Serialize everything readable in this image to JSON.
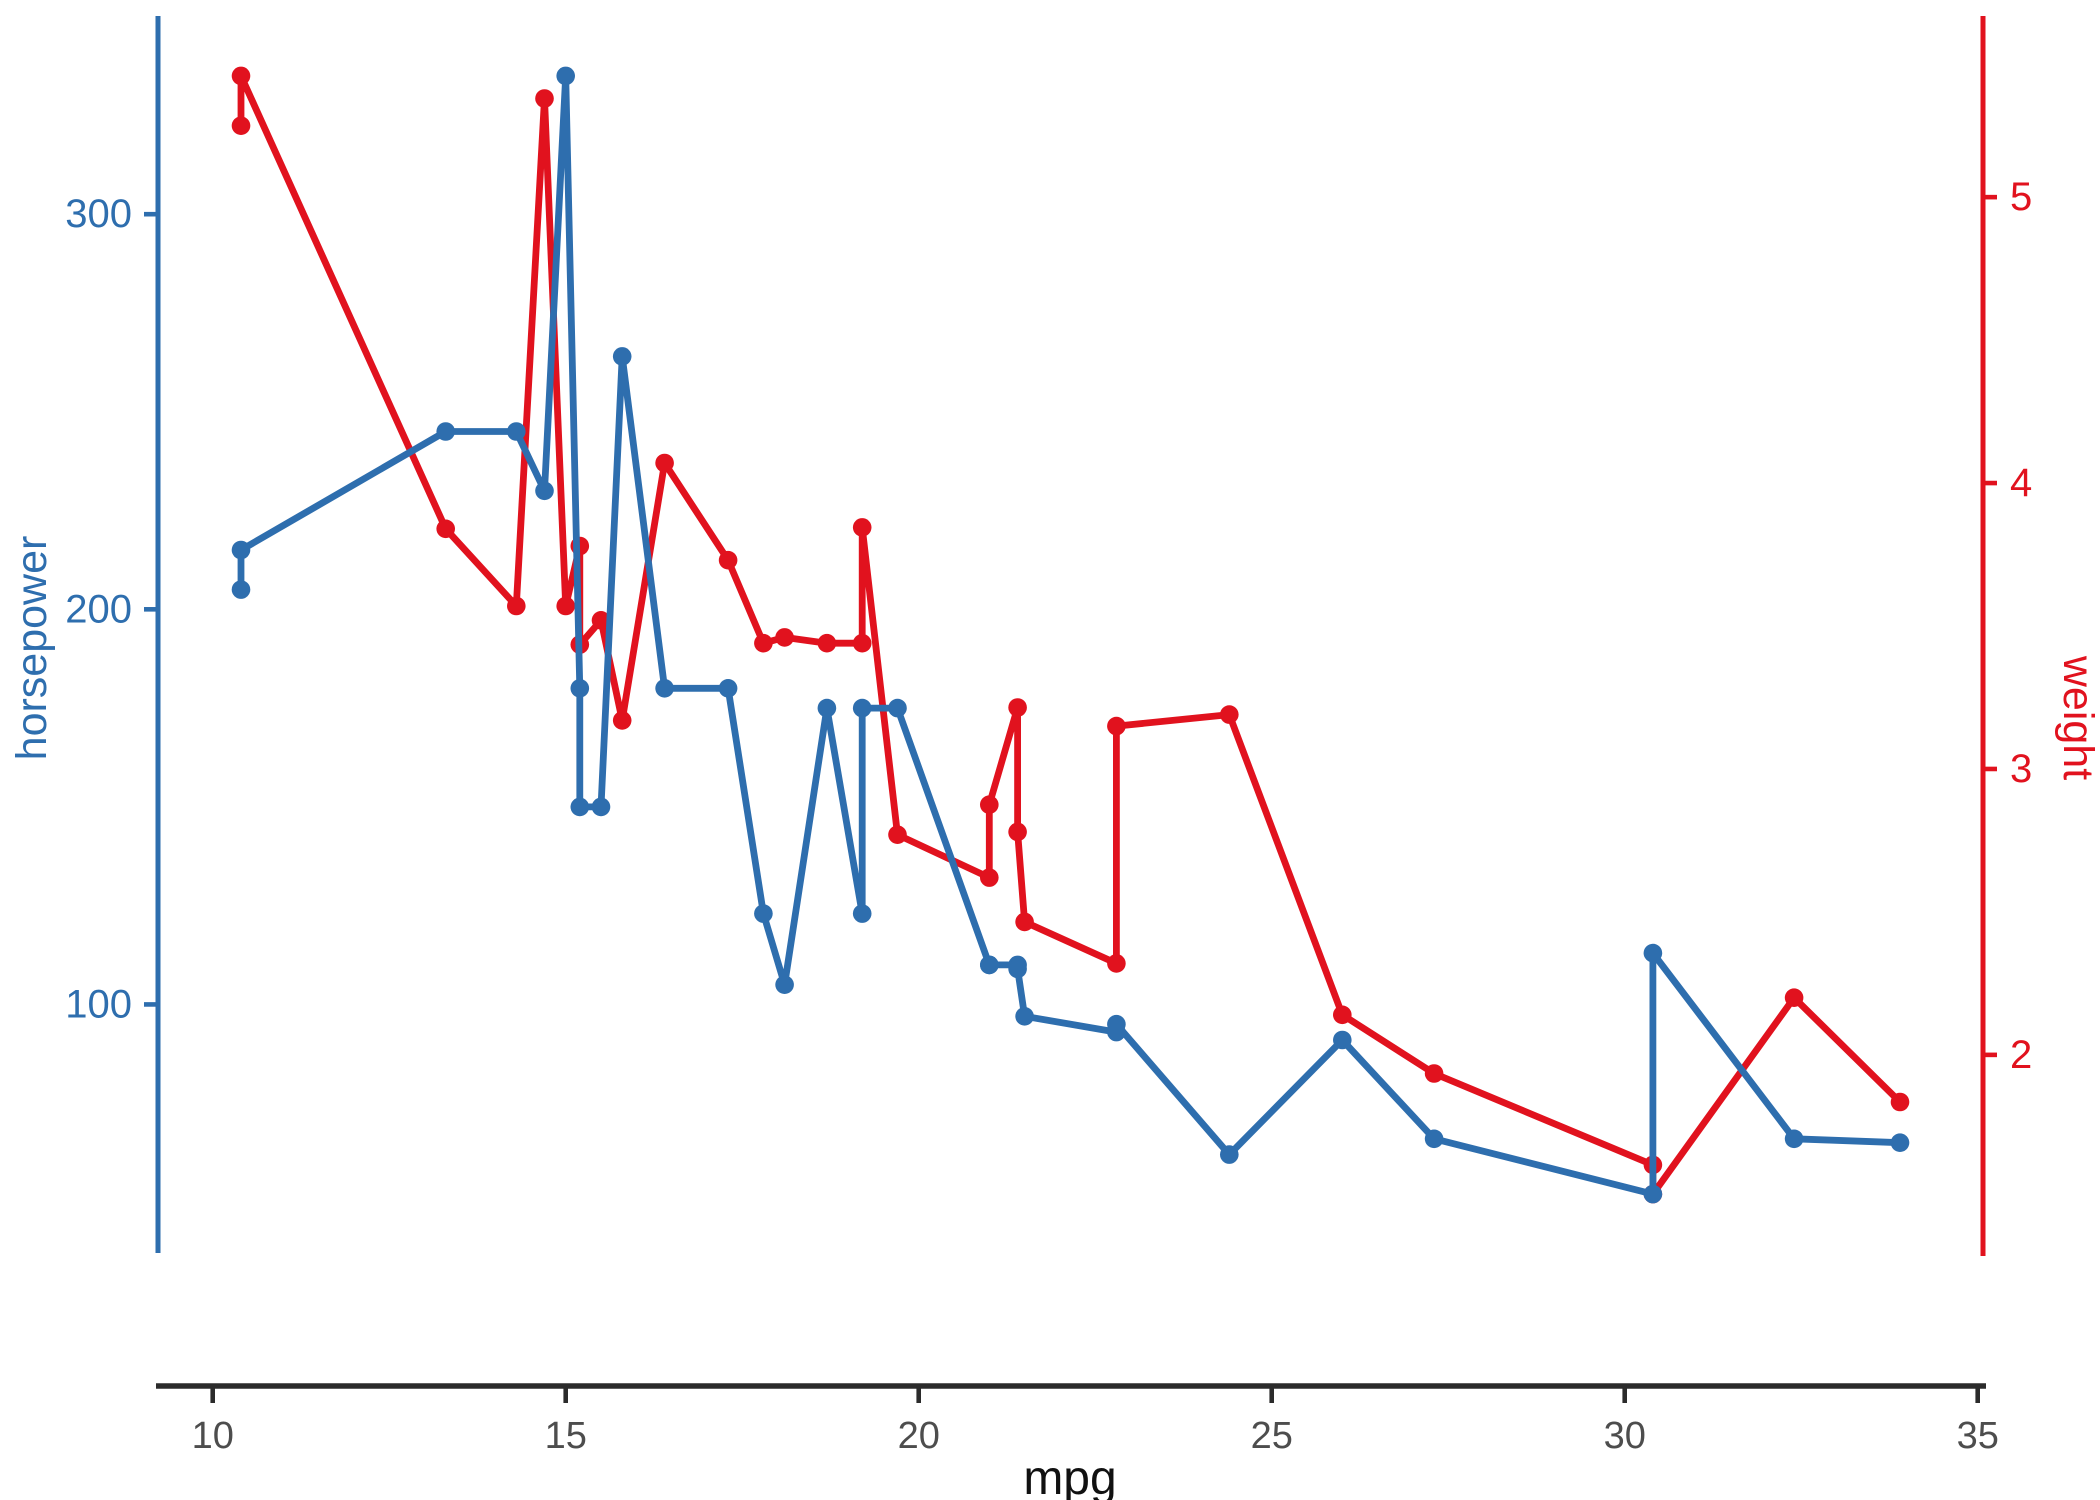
{
  "chart_data": {
    "type": "line",
    "title": "",
    "xlabel": "mpg",
    "x_ticks": [
      10,
      15,
      20,
      25,
      30,
      35
    ],
    "x_domain": [
      9.225,
      35.075
    ],
    "x": [
      10.4,
      10.4,
      13.3,
      14.3,
      14.7,
      15.0,
      15.2,
      15.2,
      15.5,
      15.8,
      16.4,
      17.3,
      17.8,
      18.1,
      18.7,
      19.2,
      19.2,
      19.7,
      21.0,
      21.0,
      21.4,
      21.4,
      21.5,
      22.8,
      22.8,
      24.4,
      26.0,
      27.3,
      30.4,
      30.4,
      32.4,
      33.9
    ],
    "series": [
      {
        "name": "weight",
        "axis": "right",
        "color": "#E1121E",
        "values": [
          5.25,
          5.424,
          3.84,
          3.57,
          5.345,
          3.57,
          3.78,
          3.435,
          3.52,
          3.17,
          4.07,
          3.73,
          3.44,
          3.46,
          3.44,
          3.44,
          3.845,
          2.77,
          2.62,
          2.875,
          3.215,
          2.78,
          2.465,
          2.32,
          3.15,
          3.19,
          2.14,
          1.935,
          1.615,
          1.513,
          2.2,
          1.835
        ]
      },
      {
        "name": "horsepower",
        "axis": "left",
        "color": "#2E6EAE",
        "values": [
          205,
          215,
          245,
          245,
          230,
          335,
          180,
          150,
          150,
          264,
          180,
          180,
          123,
          105,
          175,
          123,
          175,
          175,
          110,
          110,
          110,
          109,
          97,
          93,
          95,
          62,
          91,
          66,
          52,
          113,
          66,
          65
        ]
      }
    ],
    "y_left": {
      "label": "horsepower",
      "ticks": [
        100,
        200,
        300
      ],
      "domain": [
        37.85,
        349.15
      ],
      "color": "#2E6EAE"
    },
    "y_right": {
      "label": "weight",
      "ticks": [
        2,
        3,
        4,
        5
      ],
      "domain": [
        1.3175,
        5.6196
      ],
      "color": "#E1121E"
    },
    "legend": "none",
    "grid": "off",
    "style": {
      "x_axis_line_color": "#2b2b2b",
      "x_tick_label_color": "#4d4d4d",
      "x_title_color": "#111111",
      "background": "#ffffff"
    }
  }
}
